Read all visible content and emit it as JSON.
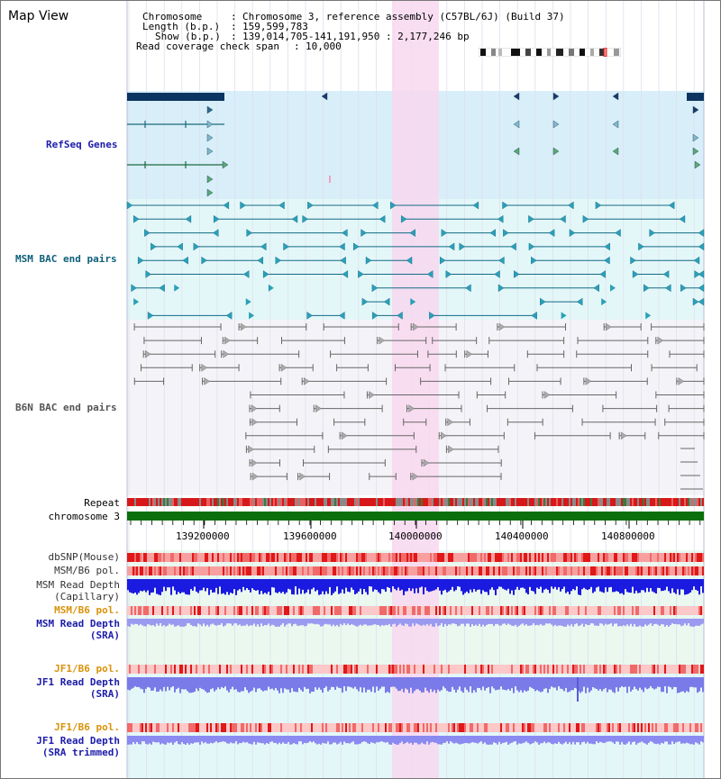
{
  "view": {
    "title": "Map View"
  },
  "info": {
    "chromosome_label": "Chromosome",
    "chromosome_value": "Chromosome 3, reference assembly (C57BL/6J) (Build 37)",
    "length_label": "Length (b.p.)",
    "length_value": "159,599,783",
    "show_label": "Show (b.p.)",
    "show_value": "139,014,705-141,191,950 : 2,177,246 bp",
    "coverage_label": "Read coverage check span",
    "coverage_value": "10,000"
  },
  "tracks": {
    "refseq": "RefSeq Genes",
    "msm_bac": "MSM BAC end pairs",
    "b6n_bac": "B6N BAC end pairs",
    "repeat": "Repeat",
    "chromosome": "chromosome 3",
    "dbsnp": "dbSNP(Mouse)",
    "msm_b6_pol": "MSM/B6 pol.",
    "msm_read_depth_cap_1": "MSM Read Depth",
    "msm_read_depth_cap_2": "(Capillary)",
    "msm_b6_pol_2": "MSM/B6 pol.",
    "msm_read_depth_sra_1": "MSM Read Depth",
    "msm_read_depth_sra_2": "(SRA)",
    "jf1_b6_pol": "JF1/B6 pol.",
    "jf1_read_depth_sra_1": "JF1 Read Depth",
    "jf1_read_depth_sra_2": "(SRA)",
    "jf1_b6_pol_2": "JF1/B6 pol.",
    "jf1_read_depth_trim_1": "JF1 Read Depth",
    "jf1_read_depth_trim_2": "(SRA trimmed)"
  },
  "axis_ticks": [
    "139200000",
    "139600000",
    "140000000",
    "140400000",
    "140800000"
  ],
  "colors": {
    "label_blue": "#1c1caa",
    "label_teal": "#0e5f7a",
    "label_gray": "#555555",
    "label_orange": "#d9920a",
    "highlight": "#f8d8f0",
    "refseq_bg": "#d8eef8",
    "msm_bg": "#e4f7f8",
    "chromosome_bar": "#0b700b"
  }
}
